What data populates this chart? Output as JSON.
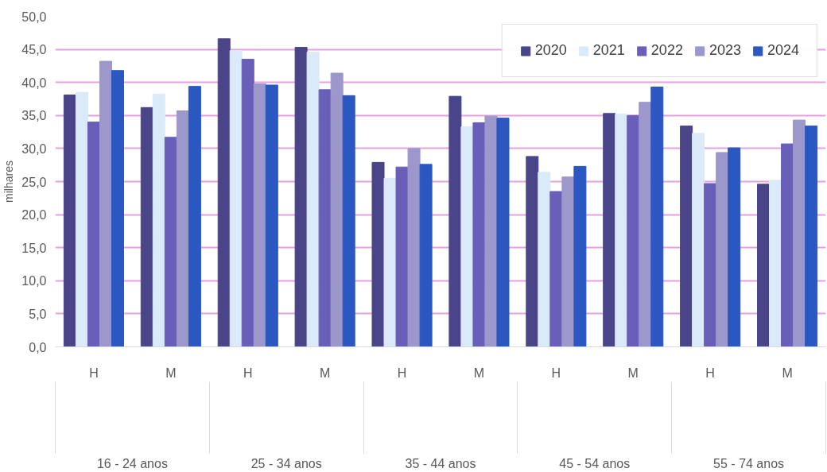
{
  "chart_data": {
    "type": "bar",
    "ylabel": "milhares",
    "categories": [
      "H",
      "M",
      "H",
      "M",
      "H",
      "M",
      "H",
      "M",
      "H",
      "M"
    ],
    "annotations": [
      "16 - 24 anos",
      "25 - 34 anos",
      "35 - 44 anos",
      "45 - 54 anos",
      "55 - 74 anos"
    ],
    "series": [
      {
        "name": "2020",
        "color": "#4a4589",
        "values": [
          38.1,
          36.2,
          46.6,
          45.3,
          27.9,
          37.9,
          28.8,
          35.3,
          33.4,
          24.6
        ]
      },
      {
        "name": "2021",
        "color": "#dbeaf8",
        "values": [
          38.5,
          38.2,
          44.8,
          44.6,
          25.5,
          33.3,
          26.4,
          35.2,
          32.3,
          25.2
        ]
      },
      {
        "name": "2022",
        "color": "#6a5fb8",
        "values": [
          34.0,
          31.7,
          43.5,
          38.9,
          27.2,
          33.9,
          23.5,
          35.0,
          24.7,
          30.7
        ]
      },
      {
        "name": "2023",
        "color": "#9d98cb",
        "values": [
          43.2,
          35.7,
          39.8,
          41.4,
          30.0,
          34.9,
          25.7,
          37.0,
          29.4,
          34.3
        ]
      },
      {
        "name": "2024",
        "color": "#2a58c0",
        "values": [
          41.8,
          39.4,
          39.6,
          38.0,
          27.6,
          34.6,
          27.3,
          39.3,
          30.1,
          33.4
        ]
      }
    ],
    "ylim": [
      0,
      50
    ],
    "yticks": [
      {
        "value": 0,
        "label": "0,0"
      },
      {
        "value": 5,
        "label": "5,0"
      },
      {
        "value": 10,
        "label": "10,0"
      },
      {
        "value": 15,
        "label": "15,0"
      },
      {
        "value": 20,
        "label": "20,0"
      },
      {
        "value": 25,
        "label": "25,0"
      },
      {
        "value": 30,
        "label": "30,0"
      },
      {
        "value": 35,
        "label": "35,0"
      },
      {
        "value": 40,
        "label": "40,0"
      },
      {
        "value": 45,
        "label": "45,0"
      },
      {
        "value": 50,
        "label": "50,0"
      }
    ],
    "grid": "y",
    "legend": "top right"
  }
}
